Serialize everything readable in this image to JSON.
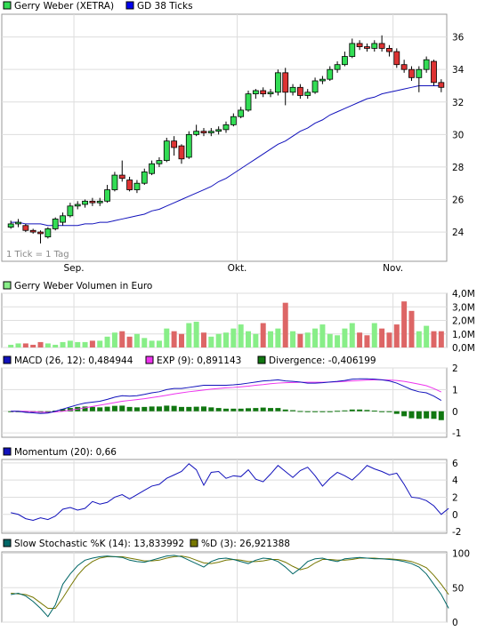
{
  "colors": {
    "up": "#33dd55",
    "down": "#dd3333",
    "volume_up": "#88ee88",
    "volume_down": "#dd6666",
    "ma": "#1111bb",
    "macd": "#1111bb",
    "exp": "#ee33ee",
    "divergence": "#117711",
    "momentum": "#1111bb",
    "stoch_k": "#006666",
    "stoch_d": "#777700",
    "grid": "#dddddd"
  },
  "chart_data": [
    {
      "type": "candlestick",
      "legend": [
        {
          "label": "Gerry Weber (XETRA)",
          "color": "#33dd55",
          "border": "#000000"
        },
        {
          "label": "GD 38 Ticks",
          "color": "#0000ee",
          "border": "#000000"
        }
      ],
      "note": "1 Tick = 1 Tag",
      "x_labels": [
        {
          "label": "Sep.",
          "index": 9
        },
        {
          "label": "Okt.",
          "index": 31
        },
        {
          "label": "Nov.",
          "index": 52
        }
      ],
      "ylim": [
        22.2,
        37.4
      ],
      "yticks": [
        24,
        26,
        28,
        30,
        32,
        34,
        36
      ],
      "candles": [
        {
          "o": 24.3,
          "c": 24.5,
          "h": 24.7,
          "l": 24.2
        },
        {
          "o": 24.5,
          "c": 24.6,
          "h": 24.8,
          "l": 24.3
        },
        {
          "o": 24.4,
          "c": 24.1,
          "h": 24.5,
          "l": 24.0
        },
        {
          "o": 24.1,
          "c": 24.0,
          "h": 24.2,
          "l": 23.9
        },
        {
          "o": 24.0,
          "c": 23.9,
          "h": 24.1,
          "l": 23.3
        },
        {
          "o": 23.7,
          "c": 24.2,
          "h": 24.3,
          "l": 23.6
        },
        {
          "o": 24.2,
          "c": 24.8,
          "h": 24.9,
          "l": 24.1
        },
        {
          "o": 24.6,
          "c": 25.0,
          "h": 25.2,
          "l": 24.4
        },
        {
          "o": 25.0,
          "c": 25.6,
          "h": 25.8,
          "l": 24.9
        },
        {
          "o": 25.6,
          "c": 25.7,
          "h": 25.9,
          "l": 25.4
        },
        {
          "o": 25.7,
          "c": 25.9,
          "h": 26.0,
          "l": 25.5
        },
        {
          "o": 25.9,
          "c": 25.8,
          "h": 26.1,
          "l": 25.6
        },
        {
          "o": 25.8,
          "c": 25.9,
          "h": 26.1,
          "l": 25.6
        },
        {
          "o": 25.9,
          "c": 26.6,
          "h": 26.9,
          "l": 25.8
        },
        {
          "o": 26.6,
          "c": 27.5,
          "h": 27.7,
          "l": 26.5
        },
        {
          "o": 27.5,
          "c": 27.3,
          "h": 28.4,
          "l": 27.1
        },
        {
          "o": 27.2,
          "c": 26.6,
          "h": 27.4,
          "l": 26.5
        },
        {
          "o": 26.6,
          "c": 27.0,
          "h": 27.2,
          "l": 26.4
        },
        {
          "o": 27.0,
          "c": 27.7,
          "h": 27.9,
          "l": 26.9
        },
        {
          "o": 27.6,
          "c": 28.2,
          "h": 28.4,
          "l": 27.5
        },
        {
          "o": 28.2,
          "c": 28.4,
          "h": 28.6,
          "l": 28.0
        },
        {
          "o": 28.4,
          "c": 29.6,
          "h": 29.8,
          "l": 28.3
        },
        {
          "o": 29.6,
          "c": 29.2,
          "h": 29.9,
          "l": 28.7
        },
        {
          "o": 29.3,
          "c": 28.5,
          "h": 29.4,
          "l": 28.2
        },
        {
          "o": 28.6,
          "c": 30.0,
          "h": 30.2,
          "l": 28.5
        },
        {
          "o": 30.0,
          "c": 30.2,
          "h": 30.6,
          "l": 29.9
        },
        {
          "o": 30.2,
          "c": 30.1,
          "h": 30.4,
          "l": 29.9
        },
        {
          "o": 30.1,
          "c": 30.2,
          "h": 30.4,
          "l": 29.9
        },
        {
          "o": 30.2,
          "c": 30.3,
          "h": 30.5,
          "l": 30.0
        },
        {
          "o": 30.3,
          "c": 30.6,
          "h": 30.8,
          "l": 30.1
        },
        {
          "o": 30.6,
          "c": 31.1,
          "h": 31.3,
          "l": 30.5
        },
        {
          "o": 31.1,
          "c": 31.5,
          "h": 31.7,
          "l": 31.0
        },
        {
          "o": 31.5,
          "c": 32.5,
          "h": 32.7,
          "l": 31.4
        },
        {
          "o": 32.5,
          "c": 32.7,
          "h": 32.8,
          "l": 32.2
        },
        {
          "o": 32.7,
          "c": 32.5,
          "h": 32.9,
          "l": 32.3
        },
        {
          "o": 32.5,
          "c": 32.6,
          "h": 32.8,
          "l": 32.3
        },
        {
          "o": 32.6,
          "c": 33.8,
          "h": 34.0,
          "l": 32.4
        },
        {
          "o": 33.8,
          "c": 32.6,
          "h": 34.1,
          "l": 31.8
        },
        {
          "o": 32.6,
          "c": 32.9,
          "h": 33.1,
          "l": 32.4
        },
        {
          "o": 32.9,
          "c": 32.4,
          "h": 33.1,
          "l": 32.2
        },
        {
          "o": 32.4,
          "c": 32.6,
          "h": 32.8,
          "l": 32.2
        },
        {
          "o": 32.6,
          "c": 33.3,
          "h": 33.5,
          "l": 32.5
        },
        {
          "o": 33.3,
          "c": 33.4,
          "h": 33.6,
          "l": 33.1
        },
        {
          "o": 33.4,
          "c": 34.0,
          "h": 34.2,
          "l": 33.3
        },
        {
          "o": 34.0,
          "c": 34.3,
          "h": 34.5,
          "l": 33.8
        },
        {
          "o": 34.3,
          "c": 34.8,
          "h": 35.1,
          "l": 34.2
        },
        {
          "o": 34.8,
          "c": 35.6,
          "h": 35.9,
          "l": 34.7
        },
        {
          "o": 35.6,
          "c": 35.4,
          "h": 35.8,
          "l": 35.2
        },
        {
          "o": 35.4,
          "c": 35.3,
          "h": 35.6,
          "l": 35.1
        },
        {
          "o": 35.3,
          "c": 35.6,
          "h": 35.8,
          "l": 35.1
        },
        {
          "o": 35.6,
          "c": 35.3,
          "h": 36.1,
          "l": 35.1
        },
        {
          "o": 35.3,
          "c": 35.1,
          "h": 35.5,
          "l": 34.8
        },
        {
          "o": 35.1,
          "c": 34.3,
          "h": 35.3,
          "l": 34.1
        },
        {
          "o": 34.3,
          "c": 34.0,
          "h": 34.6,
          "l": 33.8
        },
        {
          "o": 34.0,
          "c": 33.5,
          "h": 34.2,
          "l": 33.3
        },
        {
          "o": 33.5,
          "c": 34.0,
          "h": 34.2,
          "l": 32.6
        },
        {
          "o": 34.0,
          "c": 34.6,
          "h": 34.8,
          "l": 33.8
        },
        {
          "o": 34.5,
          "c": 33.2,
          "h": 34.6,
          "l": 33.0
        },
        {
          "o": 33.2,
          "c": 32.9,
          "h": 33.4,
          "l": 32.6
        }
      ],
      "ma": [
        24.6,
        24.6,
        24.5,
        24.5,
        24.5,
        24.4,
        24.4,
        24.4,
        24.4,
        24.4,
        24.5,
        24.5,
        24.6,
        24.6,
        24.7,
        24.8,
        24.9,
        25.0,
        25.1,
        25.3,
        25.4,
        25.6,
        25.8,
        26.0,
        26.2,
        26.4,
        26.6,
        26.8,
        27.1,
        27.3,
        27.6,
        27.9,
        28.2,
        28.5,
        28.8,
        29.1,
        29.4,
        29.6,
        29.9,
        30.2,
        30.4,
        30.7,
        30.9,
        31.2,
        31.4,
        31.6,
        31.8,
        32.0,
        32.2,
        32.3,
        32.5,
        32.6,
        32.7,
        32.8,
        32.9,
        33.0,
        33.0,
        33.0,
        33.0
      ]
    },
    {
      "type": "bar",
      "title": "Gerry Weber Volumen in Euro",
      "ylim": [
        0,
        4.0
      ],
      "yticks": [
        "0,0M",
        "1,0M",
        "2,0M",
        "3,0M",
        "4,0M"
      ],
      "ytick_values": [
        0,
        1,
        2,
        3,
        4
      ],
      "values": [
        0.2,
        0.3,
        0.3,
        0.2,
        0.4,
        0.3,
        0.2,
        0.4,
        0.5,
        0.4,
        0.4,
        0.5,
        0.5,
        0.8,
        1.1,
        1.2,
        0.8,
        1.0,
        0.7,
        0.5,
        0.5,
        1.4,
        1.2,
        1.0,
        1.8,
        1.9,
        1.1,
        0.8,
        1.0,
        1.1,
        1.4,
        1.7,
        1.2,
        1.0,
        1.8,
        1.2,
        1.4,
        3.3,
        1.2,
        1.0,
        1.1,
        1.4,
        1.7,
        1.0,
        0.9,
        1.4,
        1.8,
        1.1,
        0.9,
        1.8,
        1.4,
        1.1,
        1.7,
        3.4,
        2.7,
        1.2,
        1.6,
        1.2,
        1.2,
        1.1
      ]
    },
    {
      "type": "line+bar",
      "legend": [
        {
          "label": "MACD (26, 12): 0,484944",
          "color": "#1111bb"
        },
        {
          "label": "EXP (9): 0,891143",
          "color": "#ee33ee"
        },
        {
          "label": "Divergence: -0,406199",
          "color": "#117711"
        }
      ],
      "ylim": [
        -1.2,
        2.0
      ],
      "yticks": [
        -1,
        0,
        1,
        2
      ],
      "macd": [
        0.0,
        0.0,
        -0.05,
        -0.07,
        -0.1,
        -0.08,
        0.0,
        0.1,
        0.2,
        0.3,
        0.38,
        0.42,
        0.46,
        0.55,
        0.65,
        0.72,
        0.7,
        0.72,
        0.78,
        0.85,
        0.9,
        1.0,
        1.05,
        1.05,
        1.1,
        1.15,
        1.2,
        1.2,
        1.2,
        1.2,
        1.22,
        1.25,
        1.3,
        1.35,
        1.4,
        1.42,
        1.45,
        1.4,
        1.38,
        1.35,
        1.3,
        1.3,
        1.32,
        1.35,
        1.38,
        1.42,
        1.48,
        1.5,
        1.5,
        1.48,
        1.45,
        1.4,
        1.3,
        1.15,
        1.0,
        0.9,
        0.85,
        0.7,
        0.5
      ],
      "exp": [
        0.0,
        0.0,
        0.0,
        -0.02,
        -0.04,
        -0.05,
        -0.03,
        0.0,
        0.05,
        0.1,
        0.16,
        0.22,
        0.28,
        0.34,
        0.4,
        0.46,
        0.5,
        0.54,
        0.58,
        0.63,
        0.68,
        0.74,
        0.8,
        0.85,
        0.9,
        0.94,
        0.98,
        1.02,
        1.05,
        1.08,
        1.1,
        1.13,
        1.16,
        1.2,
        1.23,
        1.27,
        1.3,
        1.32,
        1.33,
        1.34,
        1.34,
        1.34,
        1.34,
        1.35,
        1.36,
        1.38,
        1.4,
        1.42,
        1.44,
        1.45,
        1.45,
        1.44,
        1.42,
        1.38,
        1.32,
        1.25,
        1.18,
        1.05,
        0.89
      ],
      "divergence": [
        0.0,
        0.0,
        -0.05,
        -0.05,
        -0.06,
        -0.03,
        0.03,
        0.1,
        0.15,
        0.2,
        0.22,
        0.2,
        0.18,
        0.21,
        0.25,
        0.26,
        0.2,
        0.18,
        0.2,
        0.22,
        0.22,
        0.26,
        0.25,
        0.2,
        0.2,
        0.21,
        0.22,
        0.18,
        0.15,
        0.12,
        0.12,
        0.12,
        0.14,
        0.15,
        0.17,
        0.15,
        0.15,
        0.08,
        0.05,
        0.01,
        -0.04,
        -0.04,
        -0.02,
        0.0,
        0.02,
        0.04,
        0.08,
        0.08,
        0.06,
        0.03,
        0.0,
        -0.04,
        -0.12,
        -0.23,
        -0.32,
        -0.35,
        -0.33,
        -0.35,
        -0.41
      ]
    },
    {
      "type": "line",
      "legend": [
        {
          "label": "Momentum (20): 0,66",
          "color": "#1111bb"
        }
      ],
      "ylim": [
        -2.2,
        6.4
      ],
      "yticks": [
        -2,
        0,
        2,
        4,
        6
      ],
      "values": [
        0.2,
        0.0,
        -0.5,
        -0.7,
        -0.4,
        -0.6,
        -0.2,
        0.6,
        0.8,
        0.5,
        0.7,
        1.5,
        1.2,
        1.4,
        2.0,
        2.3,
        1.8,
        2.3,
        2.8,
        3.3,
        3.5,
        4.2,
        4.6,
        5.0,
        5.9,
        5.2,
        3.4,
        4.9,
        5.0,
        4.2,
        4.5,
        4.4,
        5.2,
        4.1,
        3.8,
        4.7,
        5.7,
        5.0,
        4.3,
        5.1,
        5.5,
        4.5,
        3.3,
        4.2,
        4.9,
        4.5,
        4.0,
        4.8,
        5.7,
        5.3,
        5.0,
        4.6,
        4.8,
        3.5,
        2.0,
        1.9,
        1.6,
        1.0,
        0.0,
        0.7
      ]
    },
    {
      "type": "line",
      "legend": [
        {
          "label": "Slow Stochastic %K (14): 13,833992",
          "color": "#006666"
        },
        {
          "label": "%D (3): 26,921388",
          "color": "#777700"
        }
      ],
      "ylim": [
        0,
        102
      ],
      "yticks": [
        0,
        50,
        100
      ],
      "k": [
        40,
        42,
        38,
        30,
        20,
        8,
        25,
        55,
        70,
        82,
        90,
        93,
        95,
        96,
        95,
        94,
        90,
        88,
        87,
        90,
        93,
        96,
        97,
        95,
        90,
        85,
        80,
        88,
        92,
        93,
        91,
        88,
        85,
        90,
        93,
        92,
        88,
        80,
        70,
        78,
        88,
        92,
        93,
        90,
        88,
        92,
        93,
        94,
        93,
        92,
        92,
        91,
        90,
        88,
        85,
        80,
        70,
        55,
        40,
        20,
        14
      ],
      "d": [
        42,
        41,
        40,
        36,
        28,
        20,
        20,
        35,
        52,
        68,
        80,
        88,
        93,
        95,
        95,
        95,
        93,
        91,
        89,
        89,
        90,
        93,
        95,
        96,
        94,
        90,
        86,
        85,
        87,
        90,
        91,
        90,
        88,
        88,
        89,
        91,
        91,
        87,
        81,
        76,
        79,
        86,
        91,
        91,
        90,
        90,
        91,
        93,
        93,
        93,
        92,
        92,
        91,
        90,
        88,
        84,
        79,
        68,
        55,
        40,
        27
      ]
    }
  ]
}
